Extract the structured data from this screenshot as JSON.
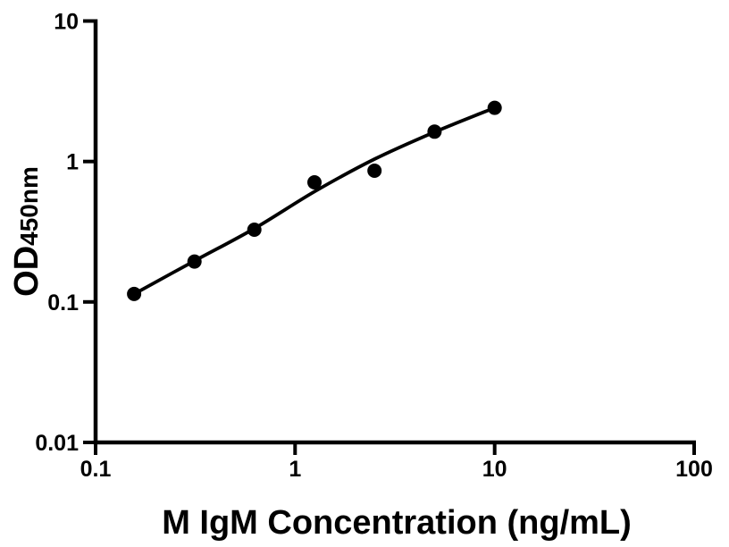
{
  "figure": {
    "background_color": "#ffffff",
    "ink_color": "#000000"
  },
  "chart_data": {
    "type": "scatter",
    "title": "",
    "xlabel": "M IgM Concentration (ng/mL)",
    "ylabel": "OD",
    "ylabel_subscript": "450nm",
    "xscale": "log",
    "yscale": "log",
    "xlim": [
      0.1,
      100
    ],
    "ylim": [
      0.01,
      10
    ],
    "grid": false,
    "legend": null,
    "x_ticks": {
      "values": [
        0.1,
        1,
        10,
        100
      ],
      "labels": [
        "0.1",
        "1",
        "10",
        "100"
      ]
    },
    "y_ticks": {
      "values": [
        0.01,
        0.1,
        1,
        10
      ],
      "labels": [
        "0.01",
        "0.1",
        "1",
        "10"
      ]
    },
    "marker": {
      "shape": "filled-circle",
      "color": "#000000"
    },
    "series": [
      {
        "name": "standard-points",
        "type": "scatter",
        "x": [
          0.156,
          0.313,
          0.625,
          1.25,
          2.5,
          5,
          10
        ],
        "y": [
          0.114,
          0.194,
          0.327,
          0.71,
          0.86,
          1.63,
          2.41
        ]
      },
      {
        "name": "fit-curve",
        "type": "line",
        "x": [
          0.156,
          0.313,
          0.625,
          1.25,
          2.5,
          5,
          10
        ],
        "y": [
          0.114,
          0.196,
          0.333,
          0.61,
          1.04,
          1.62,
          2.41
        ]
      }
    ]
  }
}
